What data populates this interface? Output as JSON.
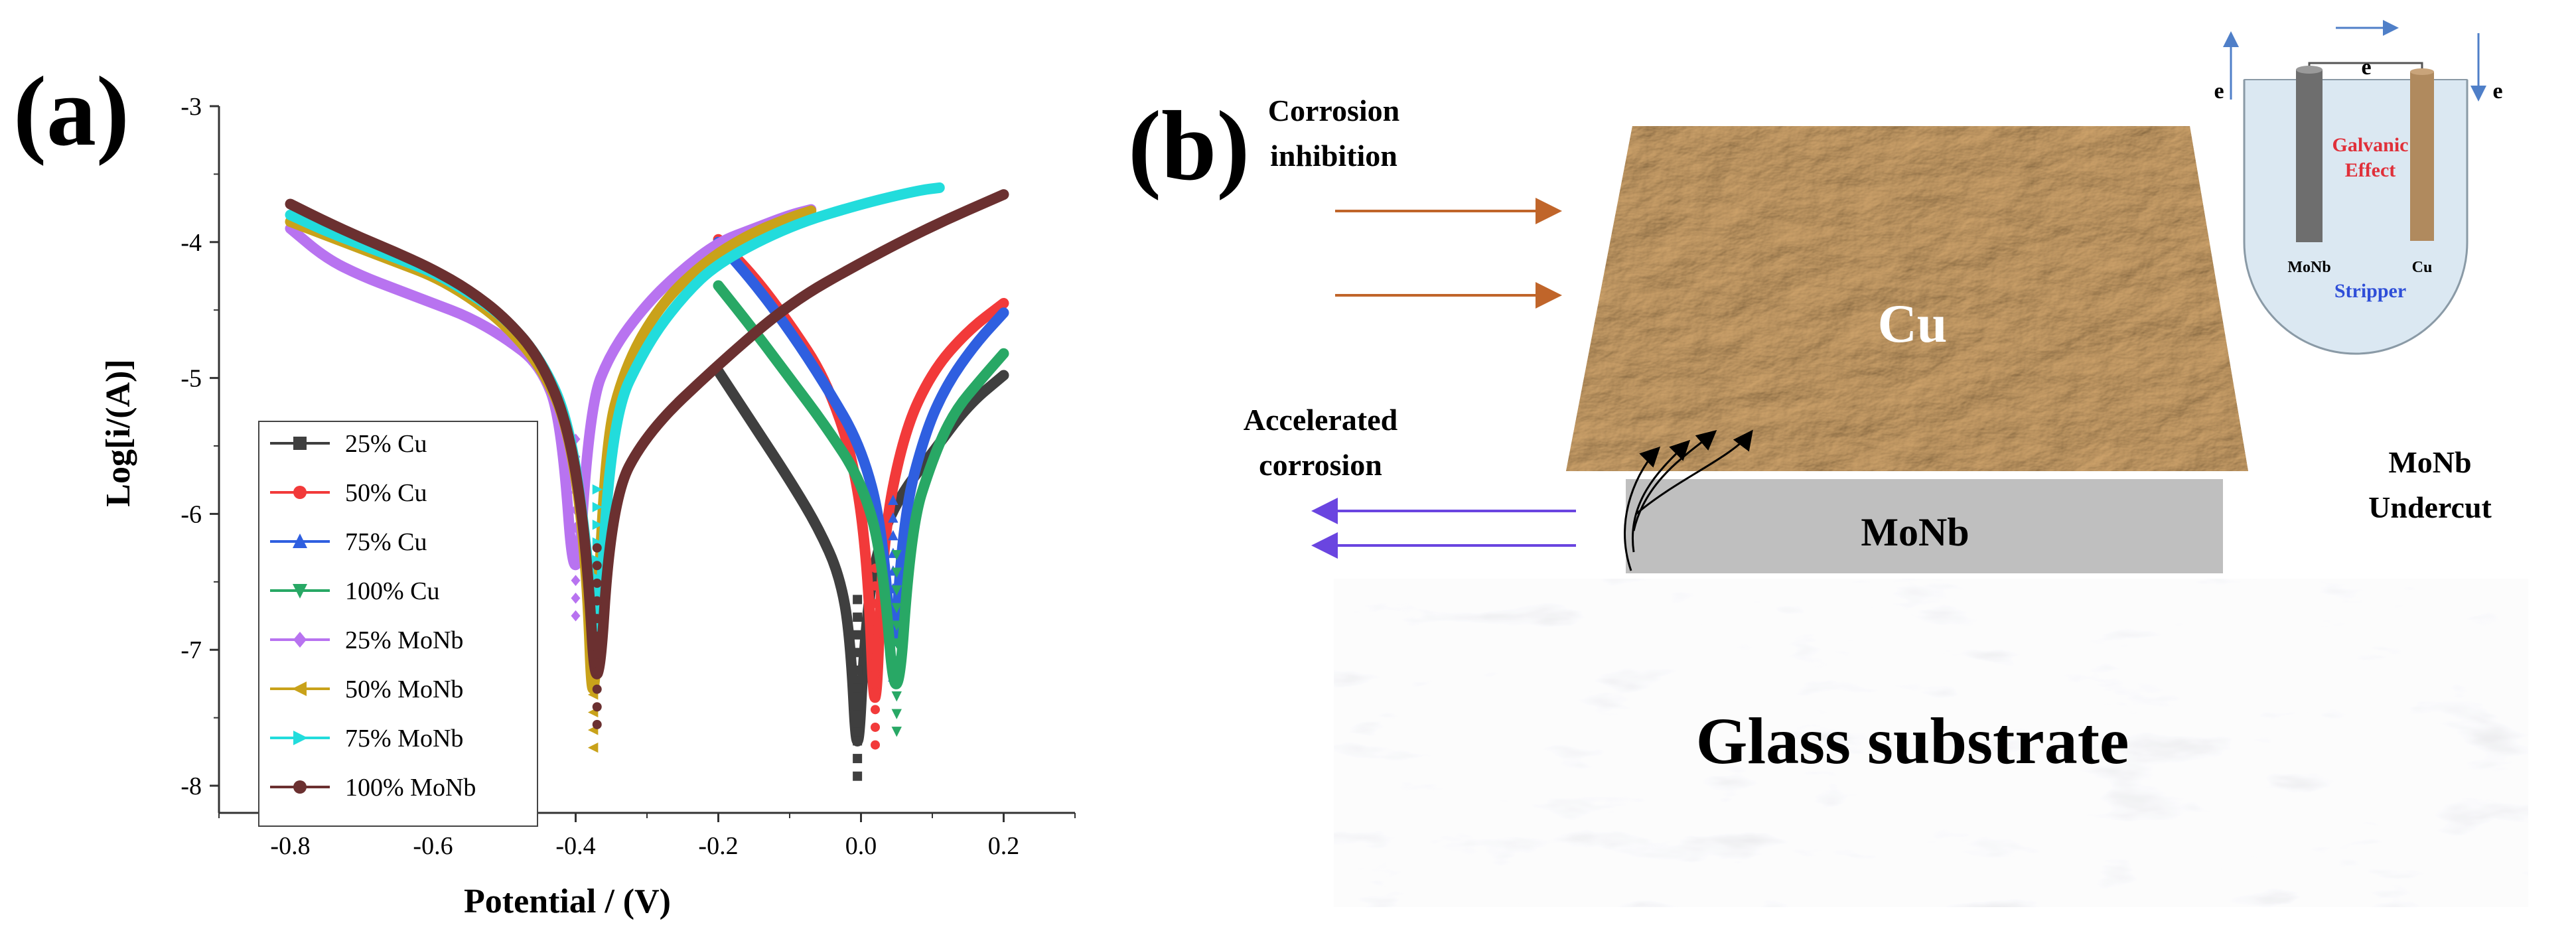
{
  "panel_a": {
    "letter": "(a)",
    "colors": {
      "25% Cu": "#3f3f3f",
      "50% Cu": "#f23a3a",
      "75% Cu": "#2f5fe0",
      "100% Cu": "#28a865",
      "25% MoNb": "#b873f0",
      "50% MoNb": "#c9a21a",
      "75% MoNb": "#22dcdc",
      "100% MoNb": "#6b3030"
    }
  },
  "chart_data": {
    "type": "line",
    "title": "",
    "xlabel": "Potential / (V)",
    "ylabel": "Log[i/(A)]",
    "xlim": [
      -0.9,
      0.3
    ],
    "ylim": [
      -8.2,
      -3.0
    ],
    "xticks": [
      -0.8,
      -0.6,
      -0.4,
      -0.2,
      0.0,
      0.2
    ],
    "xtick_labels": [
      "-0.8",
      "-0.6",
      "-0.4",
      "-0.2",
      "0.0",
      "0.2"
    ],
    "yticks": [
      -8,
      -7,
      -6,
      -5,
      -4,
      -3
    ],
    "ytick_labels": [
      "-8",
      "-7",
      "-6",
      "-5",
      "-4",
      "-3"
    ],
    "legend_position": "lower-left",
    "grid": false,
    "series": [
      {
        "name": "25% Cu",
        "marker": "square",
        "ecorr": -0.005,
        "logi_min": -7.93,
        "x": [
          -0.2,
          -0.15,
          -0.1,
          -0.06,
          -0.03,
          -0.015,
          -0.005,
          0.005,
          0.02,
          0.05,
          0.1,
          0.15,
          0.2
        ],
        "y": [
          -4.95,
          -5.35,
          -5.75,
          -6.1,
          -6.45,
          -6.9,
          -7.93,
          -6.9,
          -6.3,
          -5.9,
          -5.55,
          -5.2,
          -4.98
        ]
      },
      {
        "name": "50% Cu",
        "marker": "circle",
        "ecorr": 0.02,
        "logi_min": -7.7,
        "x": [
          -0.2,
          -0.15,
          -0.1,
          -0.05,
          -0.01,
          0.01,
          0.02,
          0.03,
          0.06,
          0.1,
          0.15,
          0.2
        ],
        "y": [
          -3.98,
          -4.25,
          -4.6,
          -5.0,
          -5.6,
          -6.4,
          -7.7,
          -6.2,
          -5.4,
          -4.95,
          -4.65,
          -4.45
        ]
      },
      {
        "name": "75% Cu",
        "marker": "triangle-up",
        "ecorr": 0.045,
        "logi_min": -7.2,
        "x": [
          -0.2,
          -0.15,
          -0.1,
          -0.05,
          0.0,
          0.03,
          0.045,
          0.06,
          0.09,
          0.12,
          0.16,
          0.2
        ],
        "y": [
          -4.0,
          -4.3,
          -4.65,
          -5.05,
          -5.5,
          -6.1,
          -7.2,
          -6.0,
          -5.4,
          -5.05,
          -4.75,
          -4.52
        ]
      },
      {
        "name": "100% Cu",
        "marker": "triangle-down",
        "ecorr": 0.05,
        "logi_min": -7.6,
        "x": [
          -0.2,
          -0.15,
          -0.1,
          -0.05,
          0.0,
          0.03,
          0.05,
          0.07,
          0.1,
          0.13,
          0.17,
          0.2
        ],
        "y": [
          -4.32,
          -4.65,
          -5.0,
          -5.35,
          -5.75,
          -6.3,
          -7.6,
          -6.1,
          -5.6,
          -5.25,
          -5.0,
          -4.82
        ]
      },
      {
        "name": "25% MoNb",
        "marker": "diamond",
        "ecorr": -0.4,
        "logi_min": -6.75,
        "x": [
          -0.8,
          -0.75,
          -0.7,
          -0.65,
          -0.6,
          -0.55,
          -0.5,
          -0.45,
          -0.42,
          -0.4,
          -0.38,
          -0.35,
          -0.3,
          -0.25,
          -0.2,
          -0.15,
          -0.1,
          -0.07
        ],
        "y": [
          -3.9,
          -4.12,
          -4.25,
          -4.35,
          -4.45,
          -4.55,
          -4.7,
          -4.9,
          -5.3,
          -6.75,
          -5.2,
          -4.8,
          -4.45,
          -4.2,
          -4.0,
          -3.9,
          -3.8,
          -3.76
        ]
      },
      {
        "name": "50% MoNb",
        "marker": "triangle-left",
        "ecorr": -0.375,
        "logi_min": -7.72,
        "x": [
          -0.8,
          -0.75,
          -0.7,
          -0.65,
          -0.6,
          -0.55,
          -0.5,
          -0.45,
          -0.41,
          -0.385,
          -0.375,
          -0.36,
          -0.33,
          -0.28,
          -0.22,
          -0.16,
          -0.1,
          -0.07
        ],
        "y": [
          -3.85,
          -3.95,
          -4.05,
          -4.15,
          -4.25,
          -4.4,
          -4.6,
          -4.9,
          -5.35,
          -6.3,
          -7.72,
          -5.5,
          -4.9,
          -4.45,
          -4.15,
          -3.95,
          -3.82,
          -3.77
        ]
      },
      {
        "name": "75% MoNb",
        "marker": "triangle-right",
        "ecorr": -0.37,
        "logi_min": -7.12,
        "x": [
          -0.8,
          -0.75,
          -0.7,
          -0.65,
          -0.6,
          -0.55,
          -0.5,
          -0.45,
          -0.41,
          -0.385,
          -0.37,
          -0.35,
          -0.3,
          -0.25,
          -0.2,
          -0.1,
          0.0,
          0.08,
          0.11
        ],
        "y": [
          -3.8,
          -3.92,
          -4.02,
          -4.12,
          -4.22,
          -4.37,
          -4.55,
          -4.85,
          -5.3,
          -6.2,
          -7.12,
          -5.3,
          -4.75,
          -4.4,
          -4.15,
          -3.88,
          -3.72,
          -3.62,
          -3.6
        ]
      },
      {
        "name": "100% MoNb",
        "marker": "circle",
        "ecorr": -0.37,
        "logi_min": -7.55,
        "x": [
          -0.8,
          -0.75,
          -0.7,
          -0.65,
          -0.6,
          -0.55,
          -0.5,
          -0.45,
          -0.41,
          -0.385,
          -0.37,
          -0.35,
          -0.3,
          -0.2,
          -0.1,
          0.0,
          0.1,
          0.2
        ],
        "y": [
          -3.72,
          -3.85,
          -3.97,
          -4.08,
          -4.2,
          -4.35,
          -4.55,
          -4.85,
          -5.35,
          -6.2,
          -7.55,
          -5.9,
          -5.4,
          -4.9,
          -4.45,
          -4.15,
          -3.88,
          -3.65
        ]
      }
    ]
  },
  "panel_b": {
    "letter": "(b)",
    "inhibition_label": [
      "Corrosion",
      "inhibition"
    ],
    "accelerated_label": [
      "Accelerated",
      "corrosion"
    ],
    "cu_label": "Cu",
    "monb_label": "MoNb",
    "undercut_label": [
      "MoNb",
      "Undercut"
    ],
    "glass_label": "Glass substrate",
    "inset": {
      "e_left": "e",
      "e_middle": "e",
      "e_right": "e",
      "galvanic_label": [
        "Galvanic",
        "Effect"
      ],
      "monb_electrode": "MoNb",
      "cu_electrode": "Cu",
      "stripper_label": "Stripper"
    },
    "colors": {
      "inhibition_arrow": "#c0652a",
      "accelerated_arrow": "#6a45e0",
      "galvanic": "#e0303a",
      "stripper": "#2f4fd8",
      "monb_layer": "#bfbfbf",
      "cu_layer": "#b8946a"
    }
  }
}
